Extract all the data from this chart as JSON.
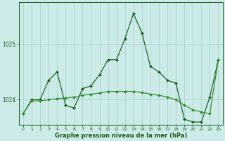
{
  "bg_color": "#cceae7",
  "grid_color": "#aad4d0",
  "line_color_dark": "#1a5c1a",
  "line_color_light": "#2e8b2e",
  "xlabel": "Graphe pression niveau de la mer (hPa)",
  "ylabel_ticks": [
    1024,
    1025
  ],
  "xlim": [
    -0.5,
    23.5
  ],
  "ylim": [
    1023.55,
    1025.75
  ],
  "xticks": [
    0,
    1,
    2,
    3,
    4,
    5,
    6,
    7,
    8,
    9,
    10,
    11,
    12,
    13,
    14,
    15,
    16,
    17,
    18,
    19,
    20,
    21,
    22,
    23
  ],
  "series1_x": [
    0,
    1,
    2,
    3,
    4,
    5,
    6,
    7,
    8,
    9,
    10,
    11,
    12,
    13,
    14,
    15,
    16,
    17,
    18,
    19,
    20,
    21,
    22,
    23
  ],
  "series1_y": [
    1023.75,
    1024.0,
    1024.0,
    1024.35,
    1024.5,
    1023.9,
    1023.85,
    1024.2,
    1024.25,
    1024.45,
    1024.72,
    1024.72,
    1025.1,
    1025.55,
    1025.2,
    1024.6,
    1024.5,
    1024.35,
    1024.3,
    1023.65,
    1023.6,
    1023.6,
    1024.05,
    1024.72
  ],
  "series2_x": [
    0,
    1,
    2,
    3,
    4,
    5,
    6,
    7,
    8,
    9,
    10,
    11,
    12,
    13,
    14,
    15,
    16,
    17,
    18,
    19,
    20,
    21,
    22,
    23
  ],
  "series2_y": [
    1023.75,
    1023.98,
    1023.98,
    1024.0,
    1024.02,
    1024.03,
    1024.05,
    1024.08,
    1024.1,
    1024.12,
    1024.15,
    1024.15,
    1024.15,
    1024.15,
    1024.13,
    1024.1,
    1024.08,
    1024.05,
    1024.0,
    1023.9,
    1023.82,
    1023.78,
    1023.75,
    1024.72
  ]
}
